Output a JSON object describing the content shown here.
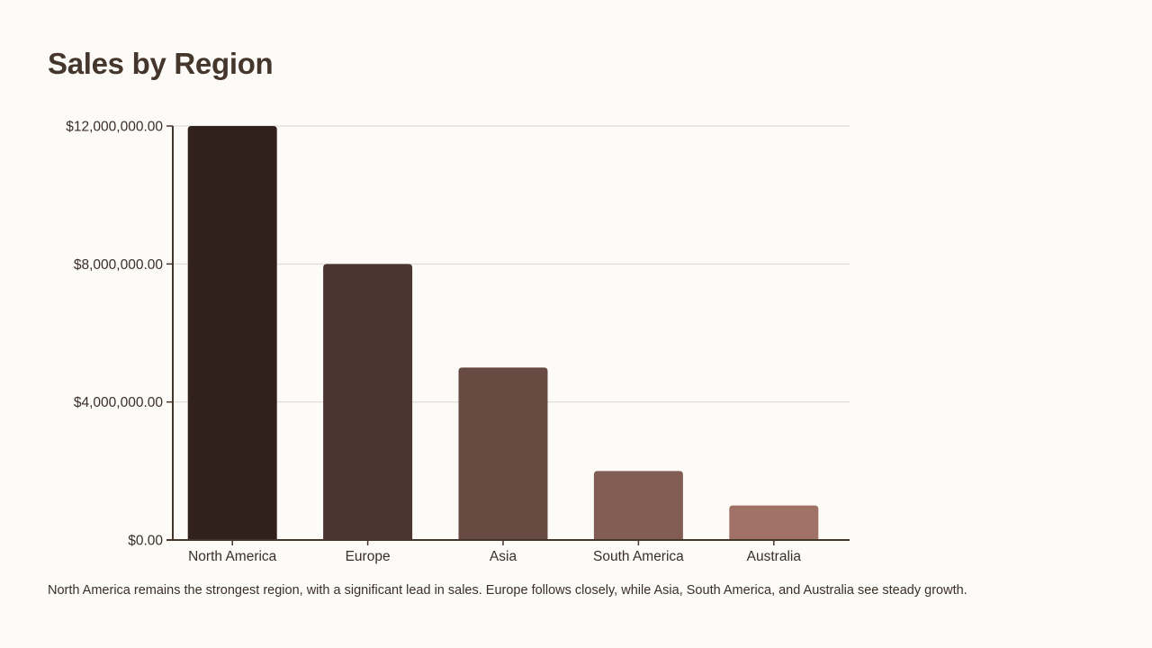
{
  "slide": {
    "title": "Sales by Region",
    "caption": "North America remains the strongest region, with a significant lead in sales. Europe follows closely, while Asia, South America, and Australia see steady growth."
  },
  "chart_data": {
    "type": "bar",
    "title": "Sales by Region",
    "xlabel": "",
    "ylabel": "",
    "categories": [
      "North America",
      "Europe",
      "Asia",
      "South America",
      "Australia"
    ],
    "values": [
      12000000,
      8000000,
      5000000,
      2000000,
      1000000
    ],
    "ylim": [
      0,
      12000000
    ],
    "yticks": [
      0,
      4000000,
      8000000,
      12000000
    ],
    "ytick_labels": [
      "$0.00",
      "$4,000,000.00",
      "$8,000,000.00",
      "$12,000,000.00"
    ],
    "grid": true,
    "legend": "none",
    "colors": [
      "#30211d",
      "#4b352f",
      "#674a42",
      "#815d54",
      "#a07166"
    ],
    "gridline_color": "#dddad6",
    "axis_color": "#45362c"
  }
}
